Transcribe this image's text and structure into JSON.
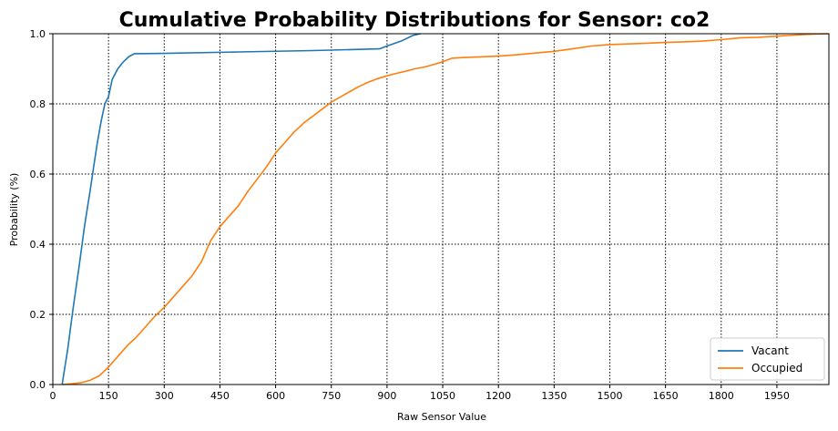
{
  "chart_data": {
    "type": "line",
    "title": "Cumulative Probability Distributions for Sensor: co2",
    "xlabel": "Raw Sensor Value",
    "ylabel": "Probability (%)",
    "xlim": [
      0,
      2090
    ],
    "ylim": [
      0,
      1.0
    ],
    "xticks": [
      0,
      150,
      300,
      450,
      600,
      750,
      900,
      1050,
      1200,
      1350,
      1500,
      1650,
      1800,
      1950
    ],
    "yticks": [
      0.0,
      0.2,
      0.4,
      0.6,
      0.8,
      1.0
    ],
    "grid": true,
    "legend_position": "lower-right",
    "series": [
      {
        "name": "Vacant",
        "color": "#1f77b4",
        "x": [
          25,
          40,
          55,
          70,
          85,
          100,
          110,
          120,
          130,
          140,
          150,
          160,
          175,
          190,
          205,
          220,
          300,
          500,
          700,
          880,
          900,
          940,
          970,
          990
        ],
        "y": [
          0.0,
          0.1,
          0.22,
          0.33,
          0.45,
          0.55,
          0.62,
          0.69,
          0.75,
          0.8,
          0.82,
          0.87,
          0.9,
          0.92,
          0.935,
          0.943,
          0.944,
          0.948,
          0.952,
          0.957,
          0.965,
          0.98,
          0.995,
          1.0
        ]
      },
      {
        "name": "Occupied",
        "color": "#ff7f0e",
        "x": [
          25,
          50,
          75,
          100,
          125,
          150,
          175,
          200,
          225,
          250,
          275,
          300,
          325,
          350,
          375,
          400,
          425,
          450,
          475,
          500,
          525,
          550,
          575,
          600,
          625,
          650,
          675,
          700,
          725,
          750,
          775,
          800,
          825,
          850,
          875,
          900,
          925,
          950,
          975,
          1000,
          1025,
          1050,
          1075,
          1100,
          1150,
          1200,
          1250,
          1300,
          1350,
          1400,
          1450,
          1500,
          1550,
          1600,
          1650,
          1700,
          1750,
          1800,
          1850,
          1900,
          1950,
          2000,
          2050,
          2090
        ],
        "y": [
          0.0,
          0.002,
          0.005,
          0.012,
          0.025,
          0.05,
          0.08,
          0.11,
          0.135,
          0.165,
          0.195,
          0.22,
          0.25,
          0.28,
          0.31,
          0.35,
          0.41,
          0.45,
          0.48,
          0.51,
          0.55,
          0.585,
          0.62,
          0.66,
          0.69,
          0.72,
          0.745,
          0.765,
          0.785,
          0.805,
          0.82,
          0.835,
          0.85,
          0.862,
          0.872,
          0.88,
          0.887,
          0.893,
          0.9,
          0.905,
          0.912,
          0.92,
          0.93,
          0.932,
          0.934,
          0.936,
          0.94,
          0.945,
          0.95,
          0.957,
          0.965,
          0.969,
          0.971,
          0.973,
          0.975,
          0.977,
          0.979,
          0.983,
          0.988,
          0.99,
          0.993,
          0.996,
          0.999,
          1.0
        ]
      }
    ]
  }
}
